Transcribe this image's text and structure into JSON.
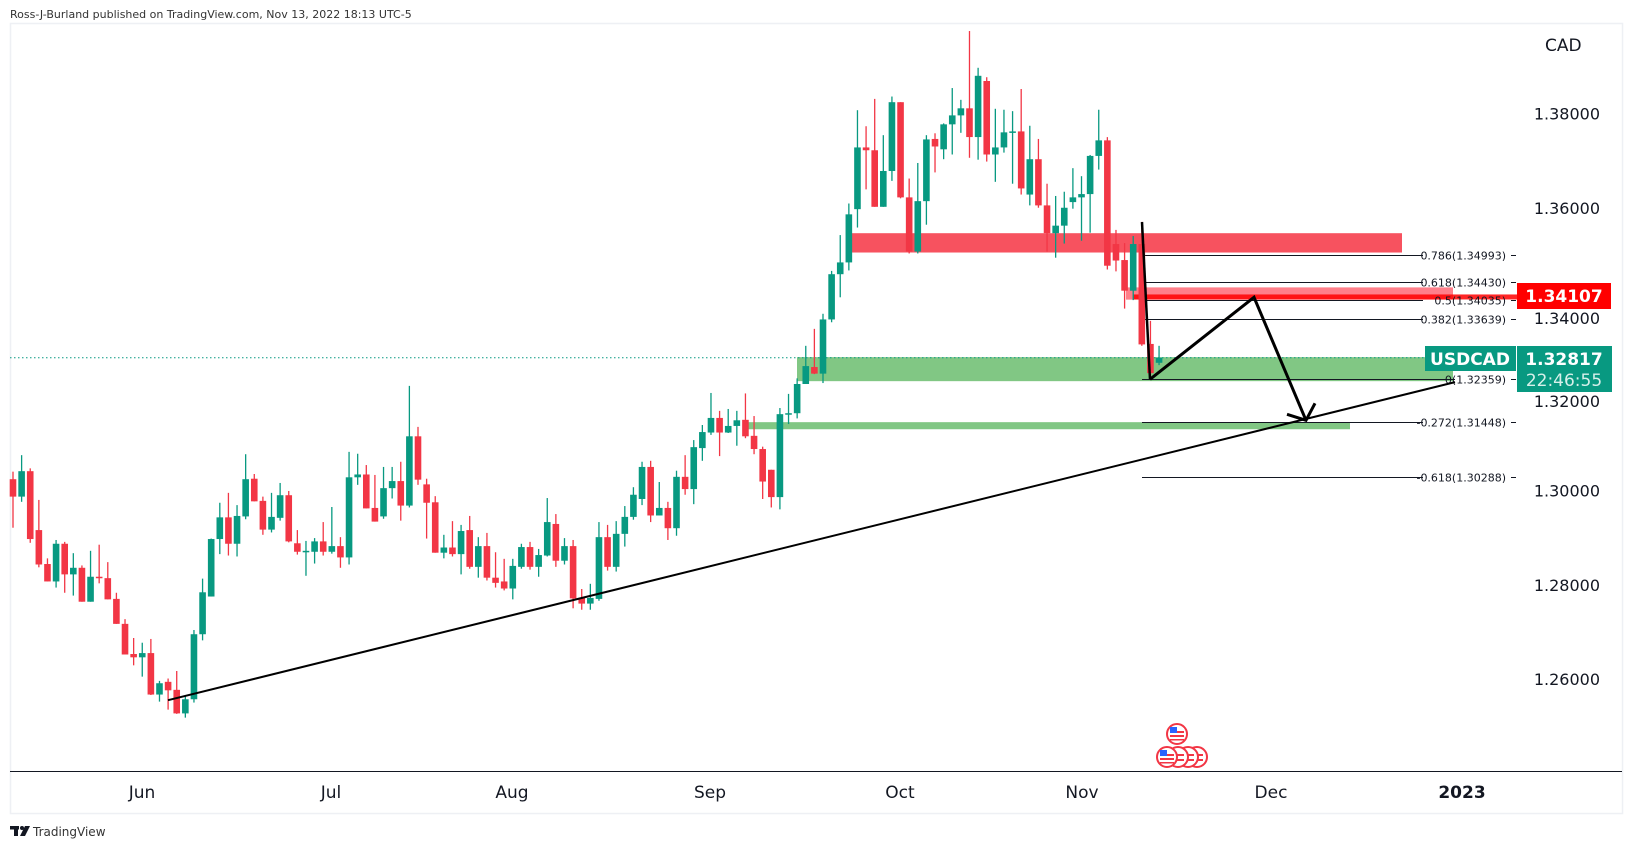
{
  "header": {
    "published_by": "Ross-J-Burland published on TradingView.com, Nov 13, 2022 18:13 UTC-5"
  },
  "footer": {
    "logo_text": "TradingView"
  },
  "symbol": {
    "name": "USDCAD",
    "last_price": "1.32817",
    "countdown": "22:46:55",
    "marked_level": "1.34107"
  },
  "colors": {
    "up": "#089981",
    "down": "#f23645",
    "supply_zone": "#f7525f",
    "supply_zone_light": "#ff7f8a",
    "demand_zone": "#81c784",
    "marked_level": "#ff0000",
    "last_price": "#089981"
  },
  "chart_data": {
    "type": "candlestick",
    "title": "",
    "currency_label": "CAD",
    "timeframe_ticks": [
      "Jun",
      "Jul",
      "Aug",
      "Sep",
      "Oct",
      "Nov",
      "Dec",
      "2023"
    ],
    "price_ticks": [
      "1.38000",
      "1.36000",
      "1.34000",
      "1.32000",
      "1.30000",
      "1.28000",
      "1.26000"
    ],
    "ylim": [
      1.242,
      1.4
    ],
    "grid": false,
    "candles_ohlc": [
      [
        1.3024,
        1.304,
        1.2921,
        1.2987
      ],
      [
        1.2987,
        1.3075,
        1.2976,
        1.3041
      ],
      [
        1.3041,
        1.3047,
        1.2889,
        1.2897
      ],
      [
        1.2916,
        1.298,
        1.2837,
        1.2843
      ],
      [
        1.2844,
        1.2856,
        1.2807,
        1.2807
      ],
      [
        1.2807,
        1.2895,
        1.2794,
        1.2887
      ],
      [
        1.2887,
        1.2891,
        1.2783,
        1.2822
      ],
      [
        1.2822,
        1.2867,
        1.2777,
        1.2836
      ],
      [
        1.2836,
        1.2841,
        1.2764,
        1.2764
      ],
      [
        1.2764,
        1.2872,
        1.2764,
        1.2817
      ],
      [
        1.2817,
        1.2885,
        1.2803,
        1.2814
      ],
      [
        1.2814,
        1.2848,
        1.2769,
        1.2769
      ],
      [
        1.277,
        1.2783,
        1.2717,
        1.2717
      ],
      [
        1.2717,
        1.2727,
        1.2652,
        1.2652
      ],
      [
        1.2653,
        1.2687,
        1.2629,
        1.2646
      ],
      [
        1.2646,
        1.2677,
        1.2605,
        1.2655
      ],
      [
        1.2655,
        1.2685,
        1.2566,
        1.2567
      ],
      [
        1.2567,
        1.2596,
        1.2552,
        1.2591
      ],
      [
        1.2594,
        1.2601,
        1.2535,
        1.2576
      ],
      [
        1.2577,
        1.2617,
        1.2526,
        1.2527
      ],
      [
        1.2527,
        1.2564,
        1.2518,
        1.2557
      ],
      [
        1.2557,
        1.2704,
        1.255,
        1.2695
      ],
      [
        1.2695,
        1.2813,
        1.2682,
        1.2784
      ],
      [
        1.2775,
        1.2898,
        1.2775,
        1.2897
      ],
      [
        1.2897,
        1.2974,
        1.2865,
        1.2943
      ],
      [
        1.2943,
        1.2995,
        1.2862,
        1.2887
      ],
      [
        1.2887,
        1.2969,
        1.286,
        1.2946
      ],
      [
        1.2945,
        1.3077,
        1.2939,
        1.3024
      ],
      [
        1.3025,
        1.3035,
        1.2977,
        1.2977
      ],
      [
        1.2978,
        1.2987,
        1.2906,
        1.2917
      ],
      [
        1.2917,
        1.2995,
        1.2911,
        1.2944
      ],
      [
        1.2942,
        1.3016,
        1.2936,
        1.299
      ],
      [
        1.299,
        1.2999,
        1.289,
        1.2892
      ],
      [
        1.2888,
        1.2916,
        1.2864,
        1.287
      ],
      [
        1.287,
        1.2893,
        1.2819,
        1.2872
      ],
      [
        1.287,
        1.2899,
        1.2845,
        1.2892
      ],
      [
        1.2892,
        1.2933,
        1.2862,
        1.287
      ],
      [
        1.287,
        1.2965,
        1.2866,
        1.2882
      ],
      [
        1.2882,
        1.2901,
        1.2836,
        1.2858
      ],
      [
        1.2858,
        1.3082,
        1.2843,
        1.3028
      ],
      [
        1.3028,
        1.3078,
        1.3012,
        1.3034
      ],
      [
        1.3034,
        1.3054,
        1.2962,
        1.2962
      ],
      [
        1.2963,
        1.3033,
        1.2934,
        1.2934
      ],
      [
        1.2945,
        1.305,
        1.294,
        1.3005
      ],
      [
        1.3005,
        1.305,
        1.2983,
        1.302
      ],
      [
        1.302,
        1.3061,
        1.2936,
        1.2968
      ],
      [
        1.2968,
        1.3222,
        1.2964,
        1.3115
      ],
      [
        1.3115,
        1.3135,
        1.3012,
        1.3023
      ],
      [
        1.3013,
        1.3025,
        1.2898,
        1.2974
      ],
      [
        1.2975,
        1.2988,
        1.2868,
        1.2868
      ],
      [
        1.2868,
        1.2906,
        1.2856,
        1.2879
      ],
      [
        1.2879,
        1.2935,
        1.286,
        1.2865
      ],
      [
        1.2865,
        1.2927,
        1.2822,
        1.2914
      ],
      [
        1.2916,
        1.2946,
        1.2834,
        1.2838
      ],
      [
        1.2838,
        1.2901,
        1.2815,
        1.2882
      ],
      [
        1.2882,
        1.291,
        1.2809,
        1.2815
      ],
      [
        1.2815,
        1.2869,
        1.2794,
        1.2804
      ],
      [
        1.2807,
        1.2855,
        1.2788,
        1.2792
      ],
      [
        1.2792,
        1.2855,
        1.2769,
        1.284
      ],
      [
        1.2838,
        1.2887,
        1.2834,
        1.288
      ],
      [
        1.288,
        1.2891,
        1.2832,
        1.2838
      ],
      [
        1.2838,
        1.2876,
        1.2817,
        1.2863
      ],
      [
        1.2862,
        1.2984,
        1.286,
        1.2933
      ],
      [
        1.2929,
        1.295,
        1.2838,
        1.2851
      ],
      [
        1.2851,
        1.2899,
        1.2843,
        1.2882
      ],
      [
        1.2882,
        1.2895,
        1.275,
        1.2771
      ],
      [
        1.2772,
        1.2791,
        1.2747,
        1.276
      ],
      [
        1.276,
        1.2802,
        1.2747,
        1.2772
      ],
      [
        1.277,
        1.2933,
        1.2766,
        1.2901
      ],
      [
        1.2901,
        1.2927,
        1.283,
        1.2838
      ],
      [
        1.2838,
        1.2935,
        1.2828,
        1.2908
      ],
      [
        1.2908,
        1.2967,
        1.2881,
        1.2944
      ],
      [
        1.2944,
        1.3007,
        1.2938,
        1.2991
      ],
      [
        1.2982,
        1.3061,
        1.2969,
        1.305
      ],
      [
        1.305,
        1.3063,
        1.2933,
        1.2947
      ],
      [
        1.2947,
        1.3018,
        1.2947,
        1.2963
      ],
      [
        1.2963,
        1.2976,
        1.2895,
        1.292
      ],
      [
        1.292,
        1.3042,
        1.2904,
        1.3029
      ],
      [
        1.3029,
        1.3075,
        1.2991,
        1.3003
      ],
      [
        1.3003,
        1.3107,
        1.2971,
        1.3092
      ],
      [
        1.309,
        1.3139,
        1.3063,
        1.3124
      ],
      [
        1.3123,
        1.3207,
        1.3118,
        1.3154
      ],
      [
        1.3154,
        1.3169,
        1.3073,
        1.3123
      ],
      [
        1.3123,
        1.3173,
        1.3122,
        1.3137
      ],
      [
        1.3137,
        1.3169,
        1.3095,
        1.3149
      ],
      [
        1.315,
        1.3206,
        1.3111,
        1.3115
      ],
      [
        1.3116,
        1.3158,
        1.3077,
        1.3088
      ],
      [
        1.3088,
        1.3093,
        1.2982,
        1.3019
      ],
      [
        1.3044,
        1.3044,
        1.2964,
        1.2986
      ],
      [
        1.2986,
        1.3175,
        1.296,
        1.3162
      ],
      [
        1.3162,
        1.3205,
        1.3141,
        1.3164
      ],
      [
        1.3164,
        1.3238,
        1.3153,
        1.3226
      ],
      [
        1.3226,
        1.3307,
        1.3226,
        1.3264
      ],
      [
        1.3262,
        1.3343,
        1.3247,
        1.3248
      ],
      [
        1.3248,
        1.3375,
        1.3228,
        1.3363
      ],
      [
        1.3363,
        1.3466,
        1.3357,
        1.3459
      ],
      [
        1.3459,
        1.3542,
        1.341,
        1.3484
      ],
      [
        1.3484,
        1.3609,
        1.3467,
        1.3586
      ],
      [
        1.3597,
        1.3807,
        1.3558,
        1.3728
      ],
      [
        1.3728,
        1.3773,
        1.3639,
        1.3722
      ],
      [
        1.3722,
        1.3831,
        1.3602,
        1.3602
      ],
      [
        1.3602,
        1.3754,
        1.3602,
        1.3678
      ],
      [
        1.3678,
        1.3836,
        1.3657,
        1.3824
      ],
      [
        1.3824,
        1.3824,
        1.362,
        1.3622
      ],
      [
        1.3622,
        1.3662,
        1.3503,
        1.3507
      ],
      [
        1.3507,
        1.3695,
        1.3503,
        1.3614
      ],
      [
        1.3614,
        1.3754,
        1.3564,
        1.3745
      ],
      [
        1.3746,
        1.3758,
        1.3675,
        1.373
      ],
      [
        1.3724,
        1.3779,
        1.3703,
        1.3777
      ],
      [
        1.3777,
        1.3854,
        1.3713,
        1.3796
      ],
      [
        1.3796,
        1.3829,
        1.3759,
        1.3811
      ],
      [
        1.3811,
        1.3975,
        1.3706,
        1.375
      ],
      [
        1.375,
        1.3897,
        1.3702,
        1.388
      ],
      [
        1.3869,
        1.3877,
        1.3698,
        1.3713
      ],
      [
        1.3713,
        1.381,
        1.3655,
        1.3728
      ],
      [
        1.3728,
        1.3808,
        1.3717,
        1.376
      ],
      [
        1.376,
        1.3805,
        1.3651,
        1.3762
      ],
      [
        1.3762,
        1.3852,
        1.3628,
        1.3641
      ],
      [
        1.3628,
        1.3774,
        1.3605,
        1.3703
      ],
      [
        1.3703,
        1.3746,
        1.36,
        1.3605
      ],
      [
        1.3605,
        1.3651,
        1.3507,
        1.3546
      ],
      [
        1.3546,
        1.3625,
        1.3494,
        1.3562
      ],
      [
        1.3562,
        1.3634,
        1.3524,
        1.36
      ],
      [
        1.3612,
        1.3684,
        1.3598,
        1.3622
      ],
      [
        1.3622,
        1.3667,
        1.353,
        1.3629
      ],
      [
        1.3629,
        1.3712,
        1.3547,
        1.371
      ],
      [
        1.371,
        1.3808,
        1.3681,
        1.3743
      ],
      [
        1.3743,
        1.375,
        1.3469,
        1.3477
      ],
      [
        1.3523,
        1.3553,
        1.3465,
        1.3488
      ],
      [
        1.3489,
        1.3525,
        1.3386,
        1.3424
      ],
      [
        1.3424,
        1.354,
        1.3404,
        1.3523
      ],
      [
        1.3523,
        1.357,
        1.3307,
        1.331
      ],
      [
        1.3311,
        1.336,
        1.3236,
        1.3249
      ],
      [
        1.3271,
        1.3307,
        1.3266,
        1.32817
      ]
    ],
    "zones": [
      {
        "type": "supply",
        "top": 1.3546,
        "bottom": 1.3505
      },
      {
        "type": "supply-light",
        "top": 1.3431,
        "bottom": 1.3405
      },
      {
        "type": "demand",
        "top": 1.3283,
        "bottom": 1.3232
      },
      {
        "type": "demand",
        "top": 1.3145,
        "bottom": 1.313
      }
    ],
    "fib_levels": [
      {
        "ratio": "0.786",
        "price": 1.34993,
        "label": "0.786(1.34993)"
      },
      {
        "ratio": "0.618",
        "price": 1.3443,
        "label": "0.618(1.34430)"
      },
      {
        "ratio": "0.5",
        "price": 1.34035,
        "label": "0.5(1.34035)"
      },
      {
        "ratio": "0.382",
        "price": 1.33639,
        "label": "0.382(1.33639)"
      },
      {
        "ratio": "0",
        "price": 1.32359,
        "label": "0(1.32359)"
      },
      {
        "ratio": "-0.272",
        "price": 1.31448,
        "label": "-0.272(1.31448)"
      },
      {
        "ratio": "-0.618",
        "price": 1.30288,
        "label": "-0.618(1.30288)"
      }
    ],
    "trendline": {
      "from_price": 1.2555,
      "to_price": 1.323
    },
    "projection_path_prices": [
      1.3236,
      1.341,
      1.3149
    ],
    "events": [
      {
        "type": "us-economic-event",
        "count_top": 1,
        "count_bottom": 4
      }
    ]
  }
}
